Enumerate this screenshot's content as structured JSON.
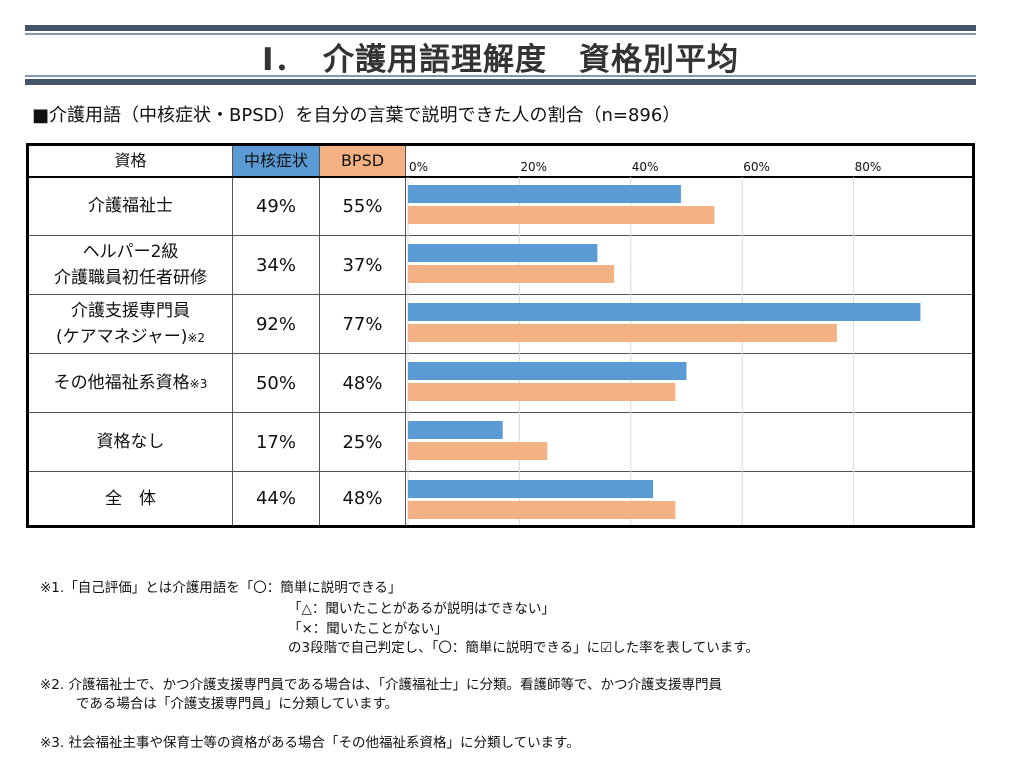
{
  "title": "Ⅰ．　介護用語理解度　資格別平均",
  "subtitle": "■介護用語（中核症状・BPSD）を自分の言葉で説明できた人の割合（n=896）",
  "headers": {
    "qual": "資格",
    "core": "中核症状",
    "bpsd": "BPSD"
  },
  "colors": {
    "core_header": "#5b9bd5",
    "bpsd_header": "#f4b183",
    "core_bar": "#5b9bd5",
    "bpsd_bar": "#f4b183"
  },
  "rows": [
    {
      "label_line1": "介護福祉士",
      "label_line2": "",
      "note": "",
      "core": "49%",
      "bpsd": "55%"
    },
    {
      "label_line1": "ヘルパー2級",
      "label_line2": "介護職員初任者研修",
      "note": "",
      "core": "34%",
      "bpsd": "37%"
    },
    {
      "label_line1": "介護支援専門員",
      "label_line2": "(ケアマネジャー)",
      "note": "※2",
      "core": "92%",
      "bpsd": "77%"
    },
    {
      "label_line1": "その他福祉系資格",
      "label_line2": "",
      "note": "※3",
      "core": "50%",
      "bpsd": "48%"
    },
    {
      "label_line1": "資格なし",
      "label_line2": "",
      "note": "",
      "core": "17%",
      "bpsd": "25%"
    },
    {
      "label_line1": "全　体",
      "label_line2": "",
      "note": "",
      "core": "44%",
      "bpsd": "48%"
    }
  ],
  "chart_data": {
    "type": "bar",
    "orientation": "horizontal",
    "categories": [
      "介護福祉士",
      "ヘルパー2級 介護職員初任者研修",
      "介護支援専門員 (ケアマネジャー)※2",
      "その他福祉系資格※3",
      "資格なし",
      "全　体"
    ],
    "series": [
      {
        "name": "中核症状",
        "values": [
          49,
          34,
          92,
          50,
          17,
          44
        ]
      },
      {
        "name": "BPSD",
        "values": [
          55,
          37,
          77,
          48,
          25,
          48
        ]
      }
    ],
    "xlim": [
      0,
      100
    ],
    "xticks": [
      "0%",
      "20%",
      "40%",
      "60%",
      "80%"
    ],
    "grid": true
  },
  "notes": {
    "n1_line1": "※1.「自己評価」とは介護用語を「〇：簡単に説明できる」",
    "n1_line2": "「△：聞いたことがあるが説明はできない」",
    "n1_line3": "「×：聞いたことがない」",
    "n1_line4": "の3段階で自己判定し、「〇：簡単に説明できる」に☑した率を表しています。",
    "n2_line1": "※2. 介護福祉士で、かつ介護支援専門員である場合は、「介護福祉士」に分類。看護師等で、かつ介護支援専門員",
    "n2_line2": "である場合は「介護支援専門員」に分類しています。",
    "n3_line1": "※3. 社会福祉主事や保育士等の資格がある場合「その他福祉系資格」に分類しています。"
  }
}
